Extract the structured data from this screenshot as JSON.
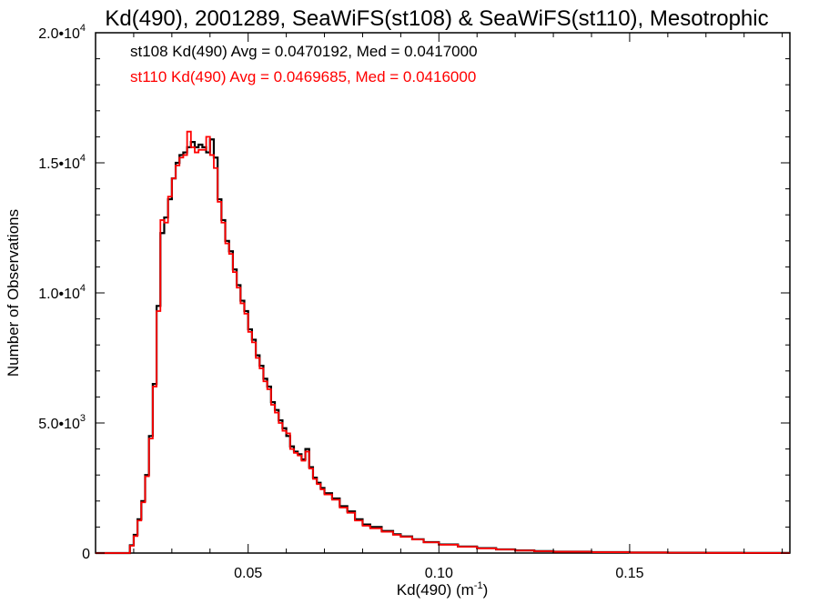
{
  "chart_data": {
    "type": "line",
    "title": "Kd(490), 2001289, SeaWiFS(st108) & SeaWiFS(st110), Mesotrophic",
    "xlabel": "Kd(490) (m",
    "xlabel_sup": "-1",
    "xlabel_close": ")",
    "ylabel": "Number of Observations",
    "xlim": [
      0.01,
      0.192
    ],
    "ylim": [
      0,
      20000
    ],
    "x_ticks": [
      {
        "value": 0.05,
        "label": "0.05"
      },
      {
        "value": 0.1,
        "label": "0.10"
      },
      {
        "value": 0.15,
        "label": "0.15"
      }
    ],
    "y_ticks": [
      {
        "value": 0,
        "mant": "0",
        "exp": ""
      },
      {
        "value": 5000,
        "mant": "5.0•10",
        "exp": "3"
      },
      {
        "value": 10000,
        "mant": "1.0•10",
        "exp": "4"
      },
      {
        "value": 15000,
        "mant": "1.5•10",
        "exp": "4"
      },
      {
        "value": 20000,
        "mant": "2.0•10",
        "exp": "4"
      }
    ],
    "annotations": [
      {
        "text": "st108 Kd(490) Avg = 0.0470192, Med = 0.0417000",
        "color": "#000000"
      },
      {
        "text": "st110 Kd(490) Avg = 0.0469685, Med = 0.0416000",
        "color": "#ff0000"
      }
    ],
    "series": [
      {
        "name": "st108",
        "color": "#000000",
        "x": [
          0.0175,
          0.019,
          0.02,
          0.021,
          0.022,
          0.023,
          0.024,
          0.025,
          0.026,
          0.027,
          0.028,
          0.029,
          0.03,
          0.031,
          0.032,
          0.033,
          0.034,
          0.035,
          0.036,
          0.037,
          0.038,
          0.039,
          0.04,
          0.041,
          0.042,
          0.043,
          0.044,
          0.045,
          0.046,
          0.047,
          0.048,
          0.049,
          0.05,
          0.051,
          0.052,
          0.053,
          0.054,
          0.055,
          0.056,
          0.057,
          0.058,
          0.059,
          0.06,
          0.061,
          0.062,
          0.063,
          0.064,
          0.065,
          0.066,
          0.067,
          0.068,
          0.069,
          0.07,
          0.072,
          0.074,
          0.076,
          0.078,
          0.08,
          0.082,
          0.085,
          0.088,
          0.09,
          0.093,
          0.096,
          0.1,
          0.105,
          0.11,
          0.115,
          0.12,
          0.125,
          0.13,
          0.14,
          0.15,
          0.16,
          0.17,
          0.18,
          0.19
        ],
        "y": [
          0,
          300,
          700,
          1300,
          2000,
          3000,
          4500,
          6500,
          9500,
          12300,
          12900,
          13600,
          14400,
          15000,
          15300,
          15400,
          15600,
          15800,
          15600,
          15700,
          15600,
          15400,
          15900,
          15200,
          13600,
          12800,
          12000,
          11600,
          10900,
          10300,
          9700,
          9300,
          8600,
          8200,
          7600,
          7200,
          6700,
          6400,
          5800,
          5500,
          5100,
          4800,
          4500,
          4100,
          3900,
          3800,
          3600,
          4000,
          3300,
          2900,
          2700,
          2500,
          2300,
          2100,
          1800,
          1600,
          1300,
          1100,
          1000,
          850,
          720,
          640,
          530,
          420,
          330,
          250,
          190,
          140,
          100,
          75,
          55,
          35,
          22,
          14,
          8,
          5,
          3
        ]
      },
      {
        "name": "st110",
        "color": "#ff0000",
        "x": [
          0.0175,
          0.019,
          0.02,
          0.021,
          0.022,
          0.023,
          0.024,
          0.025,
          0.026,
          0.027,
          0.028,
          0.029,
          0.03,
          0.031,
          0.032,
          0.033,
          0.034,
          0.035,
          0.036,
          0.037,
          0.038,
          0.039,
          0.04,
          0.041,
          0.042,
          0.043,
          0.044,
          0.045,
          0.046,
          0.047,
          0.048,
          0.049,
          0.05,
          0.051,
          0.052,
          0.053,
          0.054,
          0.055,
          0.056,
          0.057,
          0.058,
          0.059,
          0.06,
          0.061,
          0.062,
          0.063,
          0.064,
          0.065,
          0.066,
          0.067,
          0.068,
          0.069,
          0.07,
          0.072,
          0.074,
          0.076,
          0.078,
          0.08,
          0.082,
          0.085,
          0.088,
          0.09,
          0.093,
          0.096,
          0.1,
          0.105,
          0.11,
          0.115,
          0.12,
          0.125,
          0.13,
          0.14,
          0.15,
          0.16,
          0.17,
          0.18,
          0.19
        ],
        "y": [
          0,
          280,
          650,
          1250,
          1950,
          2950,
          4400,
          6400,
          9300,
          12800,
          12700,
          13700,
          14400,
          14900,
          15200,
          15300,
          16200,
          15600,
          15400,
          15500,
          15500,
          16000,
          15300,
          14800,
          13500,
          12700,
          11900,
          11500,
          10800,
          10200,
          9600,
          9200,
          8500,
          8100,
          7500,
          7100,
          6600,
          6300,
          5700,
          5400,
          5000,
          4700,
          4600,
          4000,
          3850,
          3750,
          3550,
          3900,
          3250,
          2850,
          2650,
          2450,
          2250,
          2050,
          1750,
          1550,
          1250,
          1050,
          950,
          820,
          700,
          620,
          520,
          410,
          320,
          240,
          180,
          135,
          95,
          70,
          50,
          32,
          20,
          13,
          7,
          4,
          2
        ]
      }
    ]
  }
}
